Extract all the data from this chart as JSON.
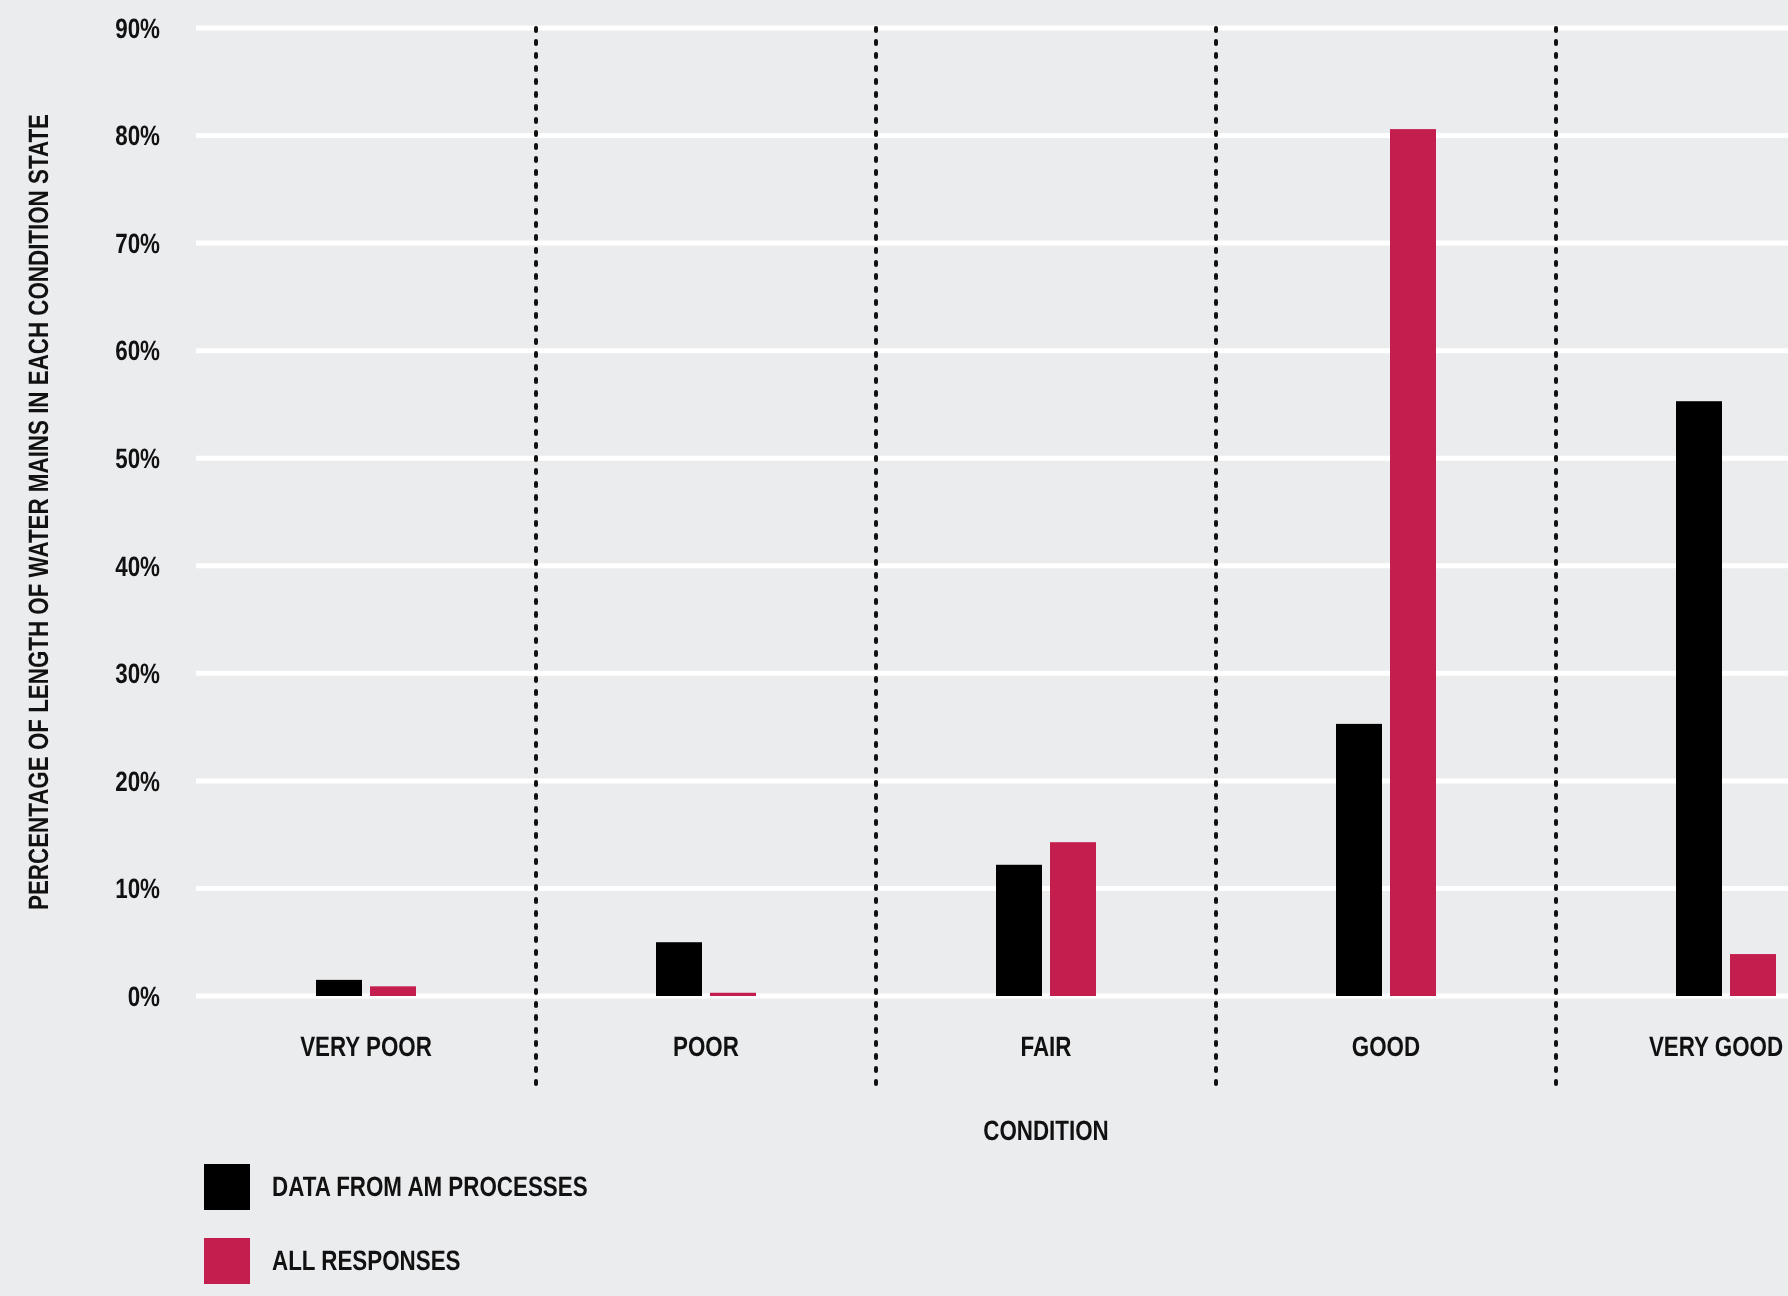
{
  "chart_data": {
    "type": "bar",
    "xlabel": "CONDITION",
    "ylabel": "PERCENTAGE OF LENGTH OF WATER MAINS IN EACH CONDITION STATE",
    "categories": [
      "VERY POOR",
      "POOR",
      "FAIR",
      "GOOD",
      "VERY GOOD"
    ],
    "series": [
      {
        "name": "DATA FROM AM PROCESSES",
        "color": "#000000",
        "values": [
          1.5,
          5.0,
          12.2,
          25.3,
          55.3
        ]
      },
      {
        "name": "ALL RESPONSES",
        "color": "#c41e4e",
        "values": [
          0.9,
          0.3,
          14.3,
          80.6,
          3.9
        ]
      }
    ],
    "ylim": [
      0,
      90
    ],
    "yticks": [
      {
        "value": 0,
        "label": "0%"
      },
      {
        "value": 10,
        "label": "10%"
      },
      {
        "value": 20,
        "label": "20%"
      },
      {
        "value": 30,
        "label": "30%"
      },
      {
        "value": 40,
        "label": "40%"
      },
      {
        "value": 50,
        "label": "50%"
      },
      {
        "value": 60,
        "label": "60%"
      },
      {
        "value": 70,
        "label": "70%"
      },
      {
        "value": 80,
        "label": "80%"
      },
      {
        "value": 90,
        "label": "90%"
      }
    ],
    "grid": "y",
    "legend": "bottom left"
  }
}
